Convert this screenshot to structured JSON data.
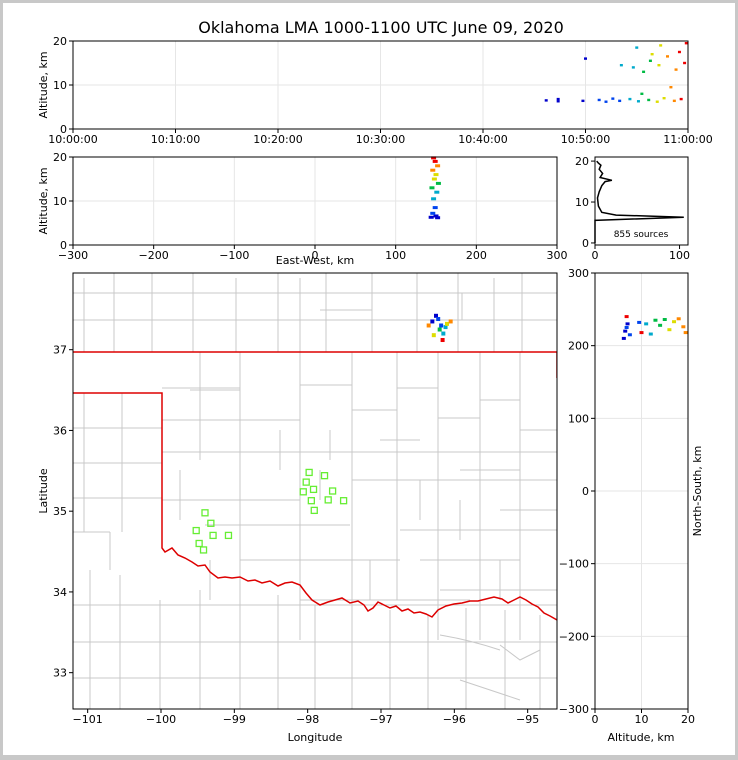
{
  "title": "Oklahoma LMA 1000-1100 UTC June 09, 2020",
  "colors": {
    "state_line": "#dd0000",
    "county_line": "#c8c8c8",
    "station": "#66ee33",
    "hist_line": "#000000",
    "grid": "#e6e6e6"
  },
  "chart_data": [
    {
      "panel": "time-altitude",
      "type": "scatter",
      "xlabel": "",
      "ylabel": "Altitude, km",
      "x_ticks": [
        "10:00:00",
        "10:10:00",
        "10:20:00",
        "10:30:00",
        "10:40:00",
        "10:50:00",
        "11:00:00"
      ],
      "xlim": [
        "10:00:00",
        "11:00:00"
      ],
      "ylim": [
        0,
        20
      ],
      "y_ticks": [
        0,
        10,
        20
      ],
      "grid": true,
      "points": [
        {
          "x": "10:46:10",
          "y": 6.5
        },
        {
          "x": "10:47:20",
          "y": 6.3
        },
        {
          "x": "10:47:20",
          "y": 6.8
        },
        {
          "x": "10:49:45",
          "y": 6.4
        },
        {
          "x": "10:50:00",
          "y": 16.0
        },
        {
          "x": "10:51:20",
          "y": 6.6
        },
        {
          "x": "10:52:00",
          "y": 6.2
        },
        {
          "x": "10:52:40",
          "y": 6.9
        },
        {
          "x": "10:53:20",
          "y": 6.4
        },
        {
          "x": "10:53:30",
          "y": 14.5
        },
        {
          "x": "10:54:20",
          "y": 6.8
        },
        {
          "x": "10:54:40",
          "y": 14.0
        },
        {
          "x": "10:55:00",
          "y": 18.5
        },
        {
          "x": "10:55:10",
          "y": 6.3
        },
        {
          "x": "10:55:30",
          "y": 8.0
        },
        {
          "x": "10:55:40",
          "y": 13.0
        },
        {
          "x": "10:56:10",
          "y": 6.6
        },
        {
          "x": "10:56:20",
          "y": 15.5
        },
        {
          "x": "10:56:30",
          "y": 17.0
        },
        {
          "x": "10:57:00",
          "y": 6.2
        },
        {
          "x": "10:57:10",
          "y": 14.5
        },
        {
          "x": "10:57:20",
          "y": 19.0
        },
        {
          "x": "10:57:40",
          "y": 7.0
        },
        {
          "x": "10:58:00",
          "y": 16.5
        },
        {
          "x": "10:58:20",
          "y": 9.5
        },
        {
          "x": "10:58:40",
          "y": 6.4
        },
        {
          "x": "10:58:50",
          "y": 13.5
        },
        {
          "x": "10:59:10",
          "y": 17.5
        },
        {
          "x": "10:59:20",
          "y": 6.8
        },
        {
          "x": "10:59:40",
          "y": 15.0
        },
        {
          "x": "10:59:50",
          "y": 19.5
        }
      ]
    },
    {
      "panel": "east-west-altitude",
      "type": "scatter",
      "xlabel": "East-West, km",
      "ylabel": "Altitude, km",
      "xlim": [
        -300,
        300
      ],
      "x_ticks": [
        -300,
        -200,
        -100,
        0,
        100,
        200,
        300
      ],
      "ylim": [
        0,
        20
      ],
      "y_ticks": [
        0,
        10,
        20
      ],
      "grid": true,
      "points": [
        {
          "x": 144,
          "y": 6.3
        },
        {
          "x": 150,
          "y": 6.6
        },
        {
          "x": 152,
          "y": 6.2
        },
        {
          "x": 146,
          "y": 7.2
        },
        {
          "x": 149,
          "y": 8.5
        },
        {
          "x": 147,
          "y": 10.5
        },
        {
          "x": 151,
          "y": 12.0
        },
        {
          "x": 145,
          "y": 13.0
        },
        {
          "x": 153,
          "y": 14.0
        },
        {
          "x": 148,
          "y": 15.0
        },
        {
          "x": 150,
          "y": 16.0
        },
        {
          "x": 146,
          "y": 17.0
        },
        {
          "x": 152,
          "y": 18.0
        },
        {
          "x": 149,
          "y": 19.0
        },
        {
          "x": 147,
          "y": 19.8
        }
      ]
    },
    {
      "panel": "altitude-histogram",
      "type": "line",
      "annotation": "855 sources",
      "xlim": [
        0,
        110
      ],
      "x_ticks": [
        0,
        100
      ],
      "ylim": [
        -0.5,
        21
      ],
      "y_ticks": [
        0,
        10,
        20
      ],
      "series": [
        {
          "points": [
            {
              "x": 0,
              "y": 0
            },
            {
              "x": 0,
              "y": 5.5
            },
            {
              "x": 105,
              "y": 6.3
            },
            {
              "x": 25,
              "y": 6.8
            },
            {
              "x": 8,
              "y": 7.5
            },
            {
              "x": 4,
              "y": 9
            },
            {
              "x": 3,
              "y": 11
            },
            {
              "x": 5,
              "y": 12.5
            },
            {
              "x": 8,
              "y": 14
            },
            {
              "x": 12,
              "y": 15
            },
            {
              "x": 20,
              "y": 15.3
            },
            {
              "x": 6,
              "y": 16
            },
            {
              "x": 9,
              "y": 17
            },
            {
              "x": 5,
              "y": 18
            },
            {
              "x": 7,
              "y": 19
            },
            {
              "x": 4,
              "y": 19.5
            },
            {
              "x": 2,
              "y": 20
            }
          ]
        }
      ]
    },
    {
      "panel": "plan-view",
      "type": "scatter",
      "xlabel": "Longitude",
      "ylabel": "Latitude",
      "xlim": [
        -101.2,
        -94.6
      ],
      "x_ticks": [
        -101,
        -100,
        -99,
        -98,
        -97,
        -96,
        -95
      ],
      "ylim": [
        32.55,
        37.95
      ],
      "y_ticks": [
        33,
        34,
        35,
        36,
        37
      ],
      "points": [
        {
          "x": -96.3,
          "y": 37.35
        },
        {
          "x": -96.25,
          "y": 37.42
        },
        {
          "x": -96.22,
          "y": 37.38
        },
        {
          "x": -96.18,
          "y": 37.3
        },
        {
          "x": -96.15,
          "y": 37.2
        },
        {
          "x": -96.12,
          "y": 37.28
        },
        {
          "x": -96.2,
          "y": 37.25
        },
        {
          "x": -96.1,
          "y": 37.32
        },
        {
          "x": -96.28,
          "y": 37.18
        },
        {
          "x": -96.05,
          "y": 37.35
        },
        {
          "x": -96.35,
          "y": 37.3
        },
        {
          "x": -96.16,
          "y": 37.12
        }
      ],
      "stations": [
        {
          "lon": -97.98,
          "lat": 35.48
        },
        {
          "lon": -97.77,
          "lat": 35.44
        },
        {
          "lon": -98.02,
          "lat": 35.36
        },
        {
          "lon": -97.92,
          "lat": 35.27
        },
        {
          "lon": -98.06,
          "lat": 35.24
        },
        {
          "lon": -97.66,
          "lat": 35.25
        },
        {
          "lon": -97.72,
          "lat": 35.14
        },
        {
          "lon": -97.51,
          "lat": 35.13
        },
        {
          "lon": -97.95,
          "lat": 35.13
        },
        {
          "lon": -97.91,
          "lat": 35.01
        },
        {
          "lon": -99.4,
          "lat": 34.98
        },
        {
          "lon": -99.32,
          "lat": 34.85
        },
        {
          "lon": -99.52,
          "lat": 34.76
        },
        {
          "lon": -99.29,
          "lat": 34.7
        },
        {
          "lon": -99.08,
          "lat": 34.7
        },
        {
          "lon": -99.48,
          "lat": 34.6
        },
        {
          "lon": -99.42,
          "lat": 34.52
        }
      ]
    },
    {
      "panel": "altitude-north-south",
      "type": "scatter",
      "xlabel": "Altitude, km",
      "ylabel": "North-South, km",
      "xlim": [
        0,
        20
      ],
      "x_ticks": [
        0,
        10,
        20
      ],
      "ylim": [
        -300,
        300
      ],
      "y_ticks": [
        -300,
        -200,
        -100,
        0,
        100,
        200,
        300
      ],
      "grid": true,
      "points": [
        {
          "x": 6.2,
          "y": 210
        },
        {
          "x": 6.5,
          "y": 220
        },
        {
          "x": 7.0,
          "y": 230
        },
        {
          "x": 6.8,
          "y": 225
        },
        {
          "x": 7.5,
          "y": 215
        },
        {
          "x": 9.5,
          "y": 232
        },
        {
          "x": 11,
          "y": 230
        },
        {
          "x": 12,
          "y": 216
        },
        {
          "x": 13,
          "y": 235
        },
        {
          "x": 14,
          "y": 228
        },
        {
          "x": 15,
          "y": 236
        },
        {
          "x": 16,
          "y": 222
        },
        {
          "x": 17,
          "y": 233
        },
        {
          "x": 18,
          "y": 237
        },
        {
          "x": 19,
          "y": 226
        },
        {
          "x": 19.5,
          "y": 218
        },
        {
          "x": 6.8,
          "y": 240
        },
        {
          "x": 10,
          "y": 218
        }
      ]
    }
  ]
}
